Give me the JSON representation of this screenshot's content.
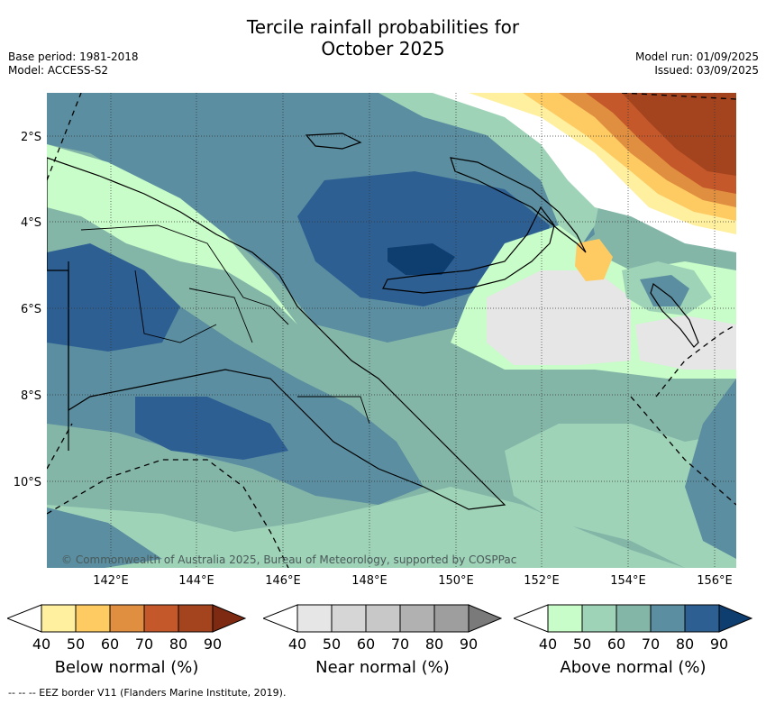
{
  "title_line1": "Tercile rainfall probabilities for",
  "title_line2": "October 2025",
  "meta": {
    "base_period": "Base period: 1981-2018",
    "model": "Model: ACCESS-S2",
    "model_run": "Model run: 01/09/2025",
    "issued": "Issued: 03/09/2025"
  },
  "map": {
    "lat_labels": [
      "2°S",
      "4°S",
      "6°S",
      "8°S",
      "10°S"
    ],
    "lon_labels": [
      "142°E",
      "144°E",
      "146°E",
      "148°E",
      "150°E",
      "152°E",
      "154°E",
      "156°E"
    ],
    "copyright": "© Commonwealth of Australia 2025, Bureau of Meteorology, supported by COSPPac"
  },
  "colors": {
    "below": [
      "#ffffff",
      "#fff0a0",
      "#fecb63",
      "#e08e3f",
      "#c4582a",
      "#a3441f",
      "#7e2a12"
    ],
    "near": [
      "#ffffff",
      "#e6e6e6",
      "#d6d6d6",
      "#c8c8c8",
      "#b1b1b1",
      "#9e9e9e",
      "#7a7a7a"
    ],
    "above": [
      "#ffffff",
      "#c8fcc8",
      "#9fd3b7",
      "#84b6a8",
      "#5a8ea0",
      "#2e5f93",
      "#0e3d70"
    ]
  },
  "colorbars": [
    {
      "label": "Below normal (%)",
      "ticks": [
        "40",
        "50",
        "60",
        "70",
        "80",
        "90"
      ]
    },
    {
      "label": "Near normal (%)",
      "ticks": [
        "40",
        "50",
        "60",
        "70",
        "80",
        "90"
      ]
    },
    {
      "label": "Above normal (%)",
      "ticks": [
        "40",
        "50",
        "60",
        "70",
        "80",
        "90"
      ]
    }
  ],
  "footer": "--  --  -- EEZ border V11 (Flanders Marine Institute, 2019)."
}
